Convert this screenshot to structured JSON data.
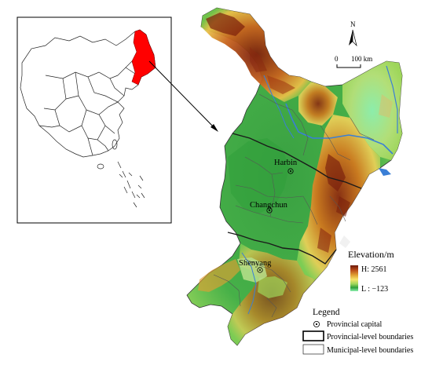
{
  "north_arrow": {
    "letter": "N"
  },
  "scale_bar": {
    "zero_label": "0",
    "distance_label": "100 km"
  },
  "cities": [
    {
      "name": "Harbin"
    },
    {
      "name": "Changchun"
    },
    {
      "name": "Shenyang"
    }
  ],
  "elevation_legend": {
    "title": "Elevation/m",
    "high_label": "H: 2561",
    "low_label": "L : −123",
    "colors": [
      "#7a1f0c",
      "#b84a17",
      "#e0a032",
      "#f6e46a",
      "#9fd65a",
      "#2f9f3a",
      "#8ff0b0"
    ]
  },
  "legend": {
    "title": "Legend",
    "items": [
      {
        "symbol": "provincial-capital",
        "label": "Provincial capital"
      },
      {
        "symbol": "provincial-boundary",
        "label": "Provincial-level boundaries"
      },
      {
        "symbol": "municipal-boundary",
        "label": "Municipal-level boundaries"
      }
    ]
  },
  "colors": {
    "highlight_region": "#ff0000",
    "river": "#3a7fd6",
    "plain_green": "#3aa142",
    "mountain_brown": "#8b2a10"
  }
}
